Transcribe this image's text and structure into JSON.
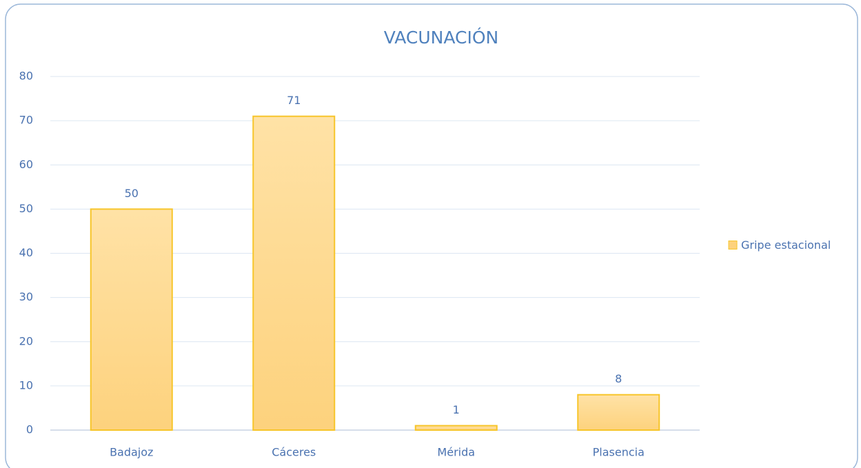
{
  "chart_data": {
    "type": "bar",
    "title": "VACUNACIÓN",
    "categories": [
      "Badajoz",
      "Cáceres",
      "Mérida",
      "Plasencia"
    ],
    "series": [
      {
        "name": "Gripe estacional",
        "color": "#fdd27d",
        "values": [
          50,
          71,
          1,
          8
        ]
      }
    ],
    "ylim": [
      0,
      80
    ],
    "yticks": [
      0,
      10,
      20,
      30,
      40,
      50,
      60,
      70,
      80
    ],
    "grid": true,
    "legend": "right",
    "data_labels": true
  }
}
